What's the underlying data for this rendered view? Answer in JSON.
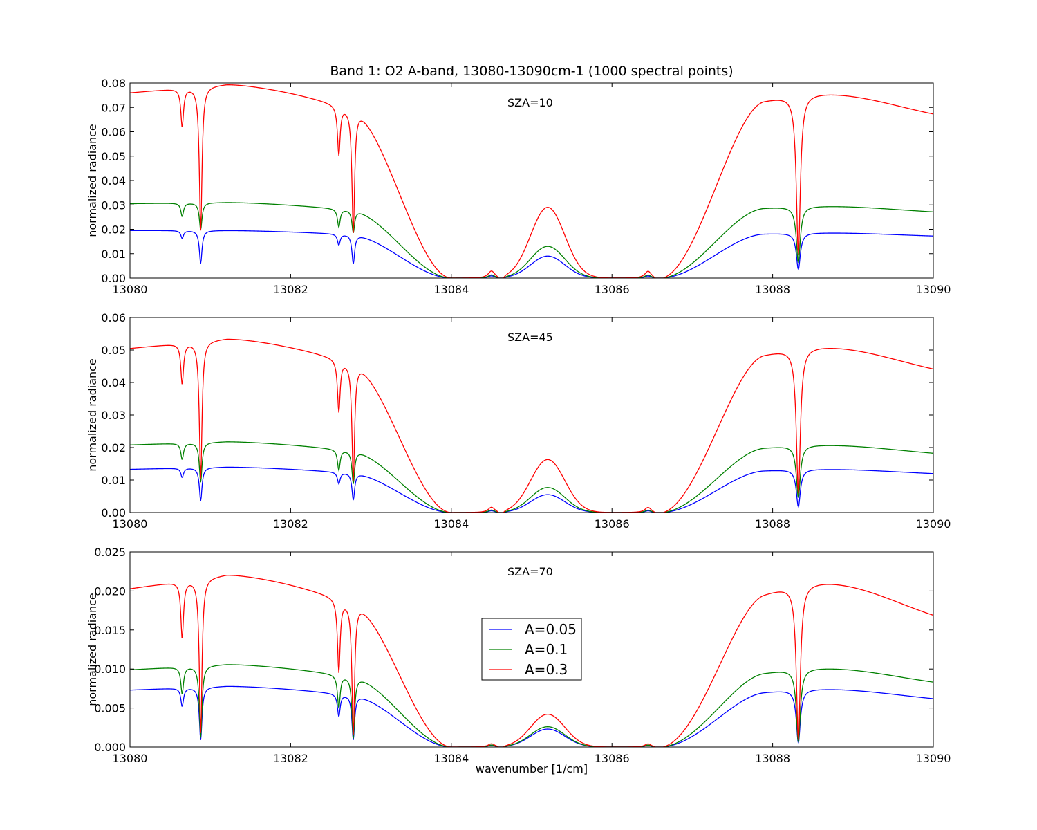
{
  "figure": {
    "title": "Band 1: O2 A-band, 13080-13090cm-1 (1000 spectral points)",
    "xlabel": "wavenumber [1/cm]"
  },
  "legend": {
    "placement": "center-left of bottom panel",
    "entries": [
      {
        "label": "A=0.05",
        "color": "#0000ff"
      },
      {
        "label": "A=0.1",
        "color": "#008000"
      },
      {
        "label": "A=0.3",
        "color": "#ff0000"
      }
    ]
  },
  "chart_data": [
    {
      "type": "line",
      "annotation": "SZA=10",
      "ylabel": "normalized radiance",
      "xlim": [
        13080,
        13090
      ],
      "ylim": [
        0,
        0.08
      ],
      "xticks": [
        "13080",
        "13082",
        "13084",
        "13086",
        "13088",
        "13090"
      ],
      "yticks": [
        "0.00",
        "0.01",
        "0.02",
        "0.03",
        "0.04",
        "0.05",
        "0.06",
        "0.07",
        "0.08"
      ],
      "series": [
        {
          "name": "A=0.05",
          "color": "#0000ff",
          "continuum": 0.0195,
          "plateau": 0.0195,
          "peak": 0.009,
          "right": 0.0165,
          "dips": [
            0.0163,
            0.006,
            0.0135,
            0.0057,
            0.0035
          ]
        },
        {
          "name": "A=0.1",
          "color": "#008000",
          "continuum": 0.0305,
          "plateau": 0.031,
          "peak": 0.013,
          "right": 0.0258,
          "dips": [
            0.0252,
            0.0198,
            0.0208,
            0.0185,
            0.0062
          ]
        },
        {
          "name": "A=0.3",
          "color": "#ff0000",
          "continuum": 0.076,
          "plateau": 0.0795,
          "peak": 0.029,
          "right": 0.0625,
          "dips": [
            0.062,
            0.0195,
            0.0505,
            0.0185,
            0.0095
          ]
        }
      ]
    },
    {
      "type": "line",
      "annotation": "SZA=45",
      "ylabel": "normalized radiance",
      "xlim": [
        13080,
        13090
      ],
      "ylim": [
        0,
        0.06
      ],
      "xticks": [
        "13080",
        "13082",
        "13084",
        "13086",
        "13088",
        "13090"
      ],
      "yticks": [
        "0.00",
        "0.01",
        "0.02",
        "0.03",
        "0.04",
        "0.05",
        "0.06"
      ],
      "series": [
        {
          "name": "A=0.05",
          "color": "#0000ff",
          "continuum": 0.0133,
          "plateau": 0.014,
          "peak": 0.0055,
          "right": 0.0112,
          "dips": [
            0.0108,
            0.0036,
            0.0088,
            0.0038,
            0.0017
          ]
        },
        {
          "name": "A=0.1",
          "color": "#008000",
          "continuum": 0.0208,
          "plateau": 0.0218,
          "peak": 0.0077,
          "right": 0.0168,
          "dips": [
            0.0163,
            0.0093,
            0.013,
            0.0088,
            0.0045
          ]
        },
        {
          "name": "A=0.3",
          "color": "#ff0000",
          "continuum": 0.0505,
          "plateau": 0.0535,
          "peak": 0.0163,
          "right": 0.0403,
          "dips": [
            0.0395,
            0.0105,
            0.031,
            0.0098,
            0.0058
          ]
        }
      ]
    },
    {
      "type": "line",
      "annotation": "SZA=70",
      "ylabel": "normalized radiance",
      "xlim": [
        13080,
        13090
      ],
      "ylim": [
        0,
        0.025
      ],
      "xticks": [
        "13080",
        "13082",
        "13084",
        "13086",
        "13088",
        "13090"
      ],
      "yticks": [
        "0.000",
        "0.005",
        "0.010",
        "0.015",
        "0.020",
        "0.025"
      ],
      "series": [
        {
          "name": "A=0.05",
          "color": "#0000ff",
          "continuum": 0.0073,
          "plateau": 0.0078,
          "peak": 0.0023,
          "right": 0.0055,
          "dips": [
            0.0052,
            0.0009,
            0.0039,
            0.0009,
            0.0005
          ]
        },
        {
          "name": "A=0.1",
          "color": "#008000",
          "continuum": 0.0099,
          "plateau": 0.0106,
          "peak": 0.0026,
          "right": 0.0073,
          "dips": [
            0.0068,
            0.0012,
            0.005,
            0.0011,
            0.0006
          ]
        },
        {
          "name": "A=0.3",
          "color": "#ff0000",
          "continuum": 0.0203,
          "plateau": 0.0221,
          "peak": 0.0042,
          "right": 0.0145,
          "dips": [
            0.0139,
            0.0018,
            0.0096,
            0.0016,
            0.0009
          ]
        }
      ]
    }
  ]
}
